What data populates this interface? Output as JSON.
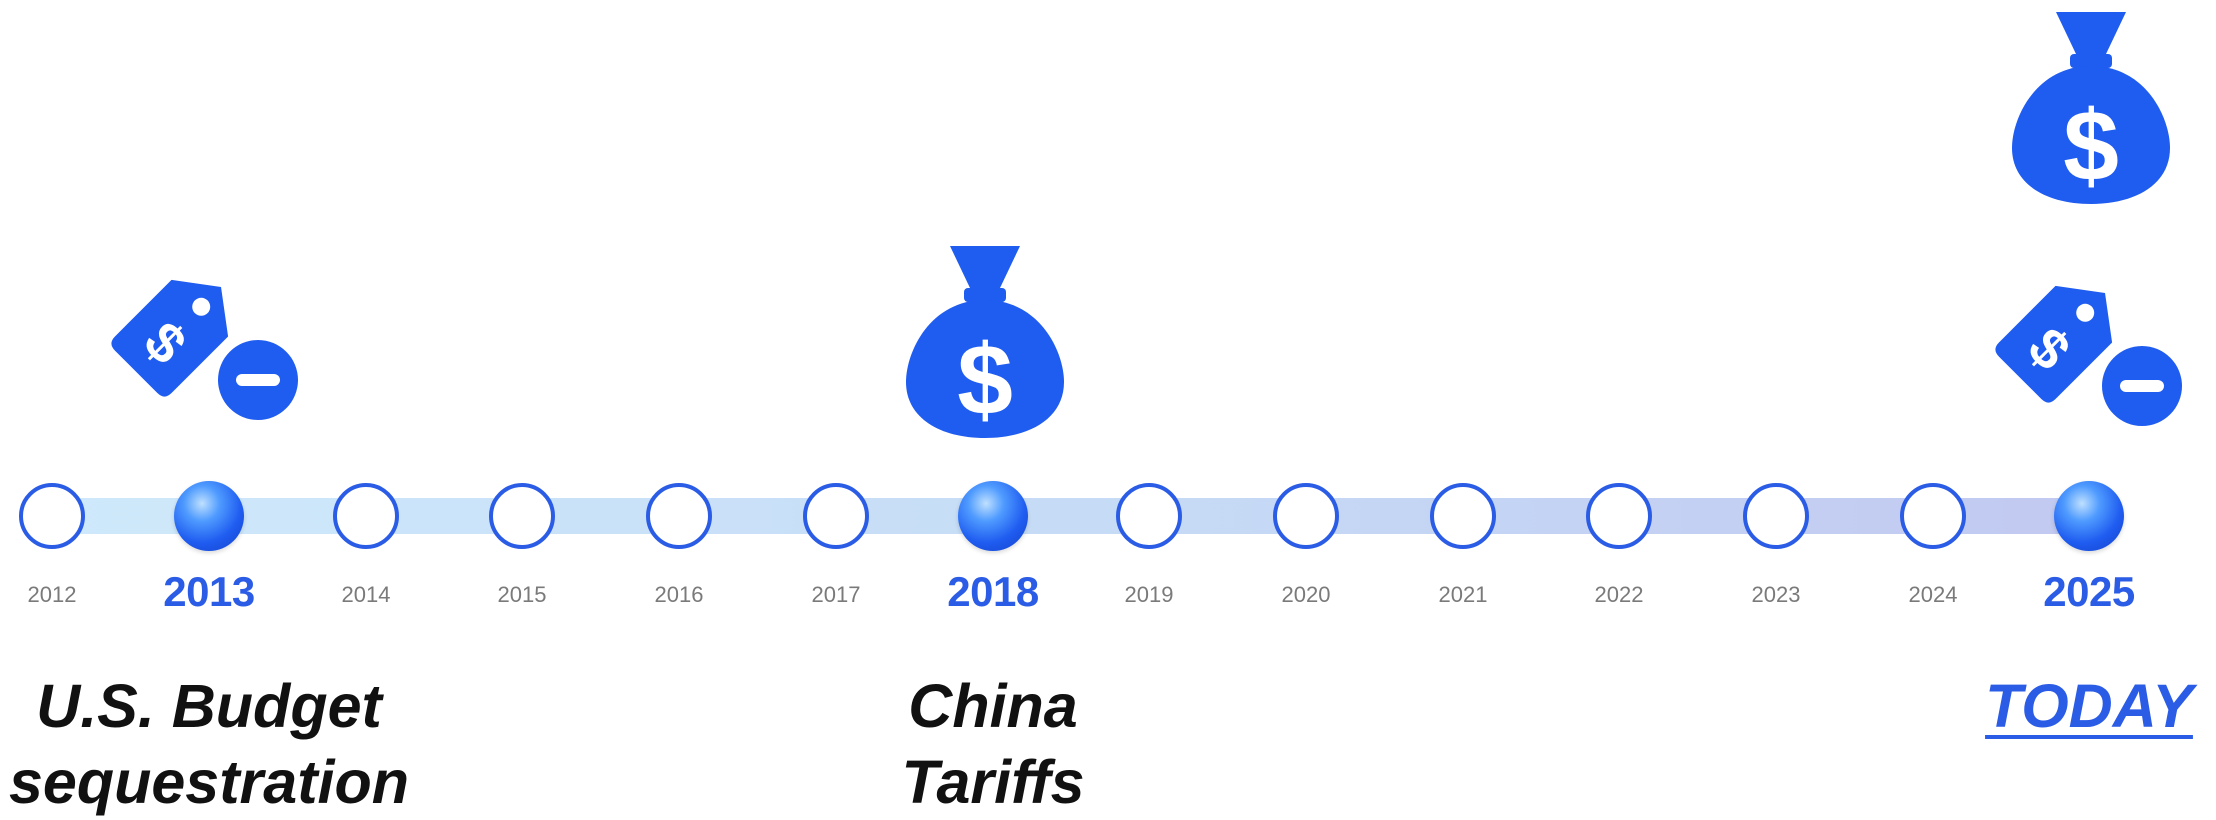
{
  "timeline": {
    "years": [
      {
        "label": "2012",
        "highlight": false
      },
      {
        "label": "2013",
        "highlight": true
      },
      {
        "label": "2014",
        "highlight": false
      },
      {
        "label": "2015",
        "highlight": false
      },
      {
        "label": "2016",
        "highlight": false
      },
      {
        "label": "2017",
        "highlight": false
      },
      {
        "label": "2018",
        "highlight": true
      },
      {
        "label": "2019",
        "highlight": false
      },
      {
        "label": "2020",
        "highlight": false
      },
      {
        "label": "2021",
        "highlight": false
      },
      {
        "label": "2022",
        "highlight": false
      },
      {
        "label": "2023",
        "highlight": false
      },
      {
        "label": "2024",
        "highlight": false
      },
      {
        "label": "2025",
        "highlight": true
      }
    ]
  },
  "events": [
    {
      "year": "2013",
      "lines": [
        "U.S. Budget",
        "sequestration"
      ],
      "icons": [
        "price-tag-minus-icon"
      ]
    },
    {
      "year": "2018",
      "lines": [
        "China",
        "Tariffs"
      ],
      "icons": [
        "money-bag-icon"
      ]
    },
    {
      "year": "2025",
      "lines": [
        "TODAY"
      ],
      "icons": [
        "money-bag-icon",
        "price-tag-minus-icon"
      ]
    }
  ],
  "colors": {
    "accent": "#2b5ce6",
    "icon": "#1f5cf0",
    "track_start": "#cfe9fb",
    "track_end": "#c2c9f1",
    "muted_text": "#7a7a7a"
  }
}
